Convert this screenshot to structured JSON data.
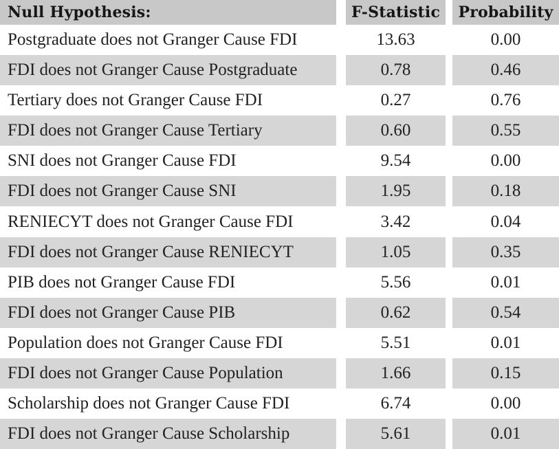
{
  "table": {
    "columns": [
      {
        "label": "Null Hypothesis:"
      },
      {
        "label": "F-Statistic"
      },
      {
        "label": "Probability"
      }
    ],
    "rows": [
      {
        "hypothesis": "Postgraduate does not Granger Cause FDI",
        "f_statistic": "13.63",
        "probability": "0.00"
      },
      {
        "hypothesis": "FDI does not Granger Cause Postgraduate",
        "f_statistic": "0.78",
        "probability": "0.46"
      },
      {
        "hypothesis": "Tertiary does not Granger Cause FDI",
        "f_statistic": "0.27",
        "probability": "0.76"
      },
      {
        "hypothesis": "FDI does not Granger Cause Tertiary",
        "f_statistic": "0.60",
        "probability": "0.55"
      },
      {
        "hypothesis": "SNI does not Granger Cause FDI",
        "f_statistic": "9.54",
        "probability": "0.00"
      },
      {
        "hypothesis": "FDI does not Granger Cause SNI",
        "f_statistic": "1.95",
        "probability": "0.18"
      },
      {
        "hypothesis": "RENIECYT does not Granger Cause FDI",
        "f_statistic": "3.42",
        "probability": "0.04"
      },
      {
        "hypothesis": "FDI does not Granger Cause RENIECYT",
        "f_statistic": "1.05",
        "probability": "0.35"
      },
      {
        "hypothesis": "PIB does not Granger Cause FDI",
        "f_statistic": "5.56",
        "probability": "0.01"
      },
      {
        "hypothesis": "FDI does not Granger Cause PIB",
        "f_statistic": "0.62",
        "probability": "0.54"
      },
      {
        "hypothesis": "Population does not Granger Cause FDI",
        "f_statistic": "5.51",
        "probability": "0.01"
      },
      {
        "hypothesis": "FDI does not Granger Cause Population",
        "f_statistic": "1.66",
        "probability": "0.15"
      },
      {
        "hypothesis": "Scholarship does not Granger Cause FDI",
        "f_statistic": "6.74",
        "probability": "0.00"
      },
      {
        "hypothesis": "FDI does not Granger Cause Scholarship",
        "f_statistic": "5.61",
        "probability": "0.01"
      }
    ]
  },
  "chart_data": {
    "type": "table",
    "columns": [
      "Null Hypothesis:",
      "F-Statistic",
      "Probability"
    ],
    "rows": [
      [
        "Postgraduate does not Granger Cause FDI",
        13.63,
        0.0
      ],
      [
        "FDI does not Granger Cause Postgraduate",
        0.78,
        0.46
      ],
      [
        "Tertiary does not Granger Cause FDI",
        0.27,
        0.76
      ],
      [
        "FDI does not Granger Cause Tertiary",
        0.6,
        0.55
      ],
      [
        "SNI does not Granger Cause FDI",
        9.54,
        0.0
      ],
      [
        "FDI does not Granger Cause SNI",
        1.95,
        0.18
      ],
      [
        "RENIECYT does not Granger Cause FDI",
        3.42,
        0.04
      ],
      [
        "FDI does not Granger Cause RENIECYT",
        1.05,
        0.35
      ],
      [
        "PIB does not Granger Cause FDI",
        5.56,
        0.01
      ],
      [
        "FDI does not Granger Cause PIB",
        0.62,
        0.54
      ],
      [
        "Population does not Granger Cause FDI",
        5.51,
        0.01
      ],
      [
        "FDI does not Granger Cause Population",
        1.66,
        0.15
      ],
      [
        "Scholarship does not Granger Cause FDI",
        6.74,
        0.0
      ],
      [
        "FDI does not Granger Cause Scholarship",
        5.61,
        0.01
      ]
    ]
  },
  "colors": {
    "header_bg": "#c8c8c8",
    "alt_row_bg": "#d6d6d6",
    "row_bg": "#ffffff",
    "header_text": "#161616",
    "body_text": "#222222"
  }
}
